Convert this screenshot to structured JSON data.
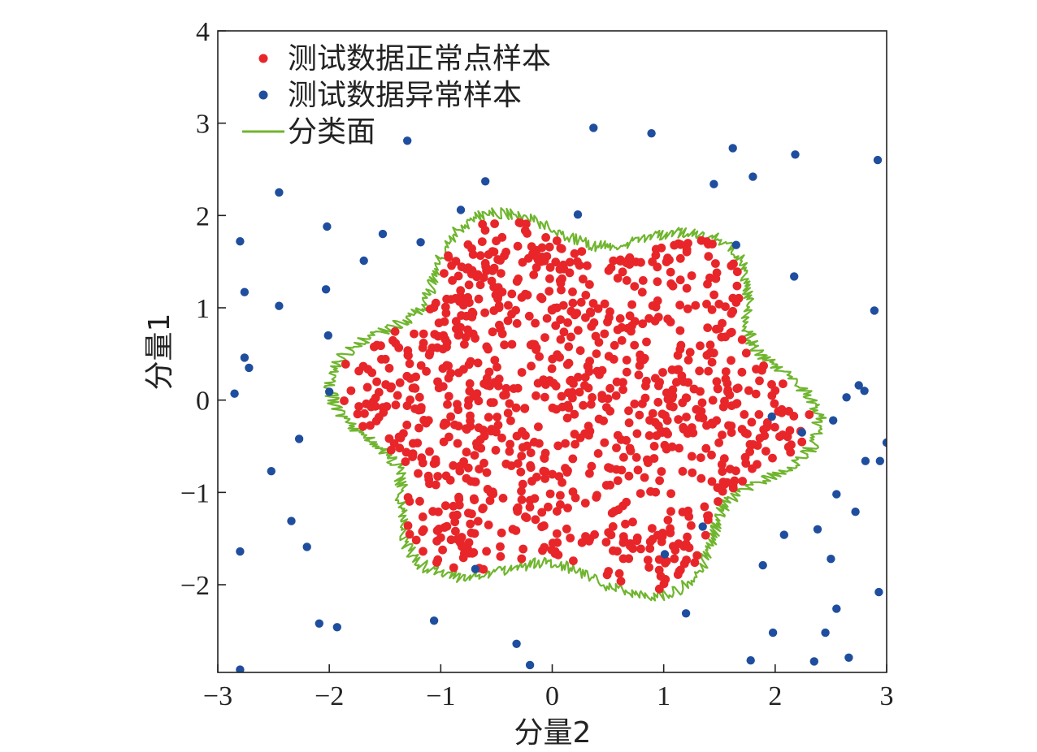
{
  "chart_data": {
    "type": "scatter",
    "xlabel": "分量2",
    "ylabel": "分量1",
    "xlim": [
      -3,
      3
    ],
    "ylim": [
      -2.95,
      4
    ],
    "xticks": [
      -3,
      -2,
      -1,
      0,
      1,
      2,
      3
    ],
    "yticks": [
      -2,
      -1,
      0,
      1,
      2,
      3,
      4
    ],
    "xtick_labels": [
      "−3",
      "−2",
      "−1",
      "0",
      "1",
      "2",
      "3"
    ],
    "ytick_labels": [
      "−2",
      "−1",
      "0",
      "1",
      "2",
      "3",
      "4"
    ],
    "grid": false,
    "legend_position": "top-left",
    "series": [
      {
        "name": "测试数据正常点样本",
        "kind": "points",
        "color": "#e8262a",
        "count": 1000,
        "distribution": "uniform inside the 分类面 boundary",
        "x": [],
        "y": []
      },
      {
        "name": "测试数据异常样本",
        "kind": "points",
        "color": "#1f4e9e",
        "x": [
          0.37,
          0.89,
          1.62,
          1.8,
          2.18,
          2.92,
          -1.3,
          1.45,
          -2.45,
          -0.6,
          -0.82,
          0.23,
          -2.02,
          -2.8,
          -1.52,
          -1.18,
          1.65,
          -1.69,
          2.17,
          -2.76,
          -2.03,
          -2.45,
          2.89,
          -2.01,
          -2.76,
          -2.72,
          -2.85,
          -2.0,
          2.75,
          2.8,
          2.64,
          2.52,
          1.97,
          2.24,
          3.0,
          2.81,
          2.94,
          -2.27,
          -2.52,
          2.55,
          2.72,
          -2.34,
          1.35,
          2.08,
          -2.2,
          -2.8,
          1.01,
          2.38,
          2.5,
          -0.69,
          1.89,
          2.93,
          -2.09,
          -1.06,
          1.2,
          2.55,
          -1.93,
          2.45,
          1.98,
          -0.32,
          2.66,
          1.78,
          2.35,
          -0.2,
          -2.8
        ],
        "y": [
          2.95,
          2.89,
          2.73,
          2.42,
          2.66,
          2.6,
          2.81,
          2.34,
          2.25,
          2.37,
          2.06,
          2.01,
          1.88,
          1.72,
          1.8,
          1.71,
          1.68,
          1.51,
          1.34,
          1.17,
          1.2,
          1.02,
          0.97,
          0.7,
          0.46,
          0.35,
          0.07,
          0.09,
          0.16,
          0.1,
          0.03,
          -0.22,
          -0.18,
          -0.35,
          -0.46,
          -0.66,
          -0.66,
          -0.42,
          -0.77,
          -1.02,
          -1.21,
          -1.31,
          -1.37,
          -1.46,
          -1.59,
          -1.64,
          -1.67,
          -1.4,
          -1.72,
          -1.83,
          -1.79,
          -2.08,
          -2.42,
          -2.39,
          -2.31,
          -2.26,
          -2.46,
          -2.52,
          -2.52,
          -2.64,
          -2.79,
          -2.82,
          -2.83,
          -2.87,
          -2.92
        ]
      },
      {
        "name": "分类面",
        "kind": "line",
        "color": "#6fb52e",
        "shape": "closed flower-shaped boundary, center (0.2, -0.05), radius 1.97 + 0.24·sin(6θ+2.3), with fine jagged noise"
      }
    ]
  }
}
